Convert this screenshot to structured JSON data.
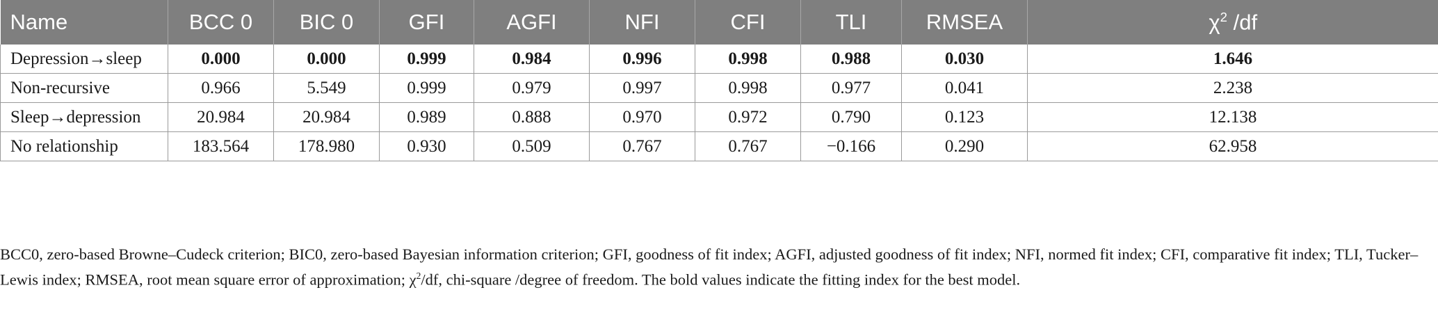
{
  "table": {
    "headers": [
      "Name",
      "BCC 0",
      "BIC 0",
      "GFI",
      "AGFI",
      "NFI",
      "CFI",
      "TLI",
      "RMSEA",
      "χ",
      "2",
      " /df"
    ],
    "rows": [
      {
        "name": "Depression→sleep",
        "values": [
          "0.000",
          "0.000",
          "0.999",
          "0.984",
          "0.996",
          "0.998",
          "0.988",
          "0.030",
          "1.646"
        ]
      },
      {
        "name": "Non-recursive",
        "values": [
          "0.966",
          "5.549",
          "0.999",
          "0.979",
          "0.997",
          "0.998",
          "0.977",
          "0.041",
          "2.238"
        ]
      },
      {
        "name": "Sleep→depression",
        "values": [
          "20.984",
          "20.984",
          "0.989",
          "0.888",
          "0.970",
          "0.972",
          "0.790",
          "0.123",
          "12.138"
        ]
      },
      {
        "name": "No relationship",
        "values": [
          "183.564",
          "178.980",
          "0.930",
          "0.509",
          "0.767",
          "0.767",
          "−0.166",
          "0.290",
          "62.958"
        ]
      }
    ]
  },
  "footnote": {
    "part1": "BCC0, zero-based Browne–Cudeck criterion; BIC0, zero-based Bayesian information criterion; GFI, goodness of fit index; AGFI, adjusted goodness of fit index; NFI, normed fit index; CFI, comparative fit index; TLI, Tucker–Lewis index; RMSEA, root mean square error of approximation; χ",
    "sup": "2",
    "part2": "/df, chi-square /degree of freedom. The bold values indicate the fitting index for the best model."
  }
}
